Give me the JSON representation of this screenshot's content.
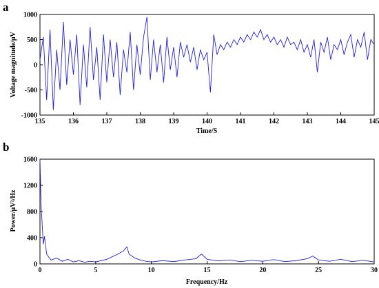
{
  "panels": {
    "a": {
      "label": "a"
    },
    "b": {
      "label": "b"
    }
  },
  "colors": {
    "series": "#1f1fdd",
    "axis": "#000000"
  },
  "chart_data": [
    {
      "type": "line",
      "xlabel": "Time/S",
      "ylabel": "Voltage magnitude/μV",
      "xlim": [
        135,
        145
      ],
      "ylim": [
        -1000,
        1000
      ],
      "xticks": [
        "135",
        "136",
        "137",
        "138",
        "139",
        "140",
        "141",
        "142",
        "143",
        "144",
        "145"
      ],
      "yticks": [
        "-1000",
        "-500",
        "0",
        "500",
        "1000"
      ],
      "grid": false,
      "series": [
        {
          "x": [
            135.0,
            135.1,
            135.2,
            135.3,
            135.4,
            135.5,
            135.6,
            135.7,
            135.8,
            135.9,
            136.0,
            136.1,
            136.2,
            136.3,
            136.4,
            136.5,
            136.6,
            136.7,
            136.8,
            136.9,
            137.0,
            137.1,
            137.2,
            137.3,
            137.4,
            137.5,
            137.6,
            137.7,
            137.8,
            137.9,
            138.0,
            138.1,
            138.2,
            138.3,
            138.4,
            138.5,
            138.6,
            138.7,
            138.8,
            138.9,
            139.0,
            139.1,
            139.2,
            139.3,
            139.4,
            139.5,
            139.6,
            139.7,
            139.8,
            139.9,
            140.0,
            140.1,
            140.2,
            140.3,
            140.4,
            140.5,
            140.6,
            140.7,
            140.8,
            140.9,
            141.0,
            141.1,
            141.2,
            141.3,
            141.4,
            141.5,
            141.6,
            141.7,
            141.8,
            141.9,
            142.0,
            142.1,
            142.2,
            142.3,
            142.4,
            142.5,
            142.6,
            142.7,
            142.8,
            142.9,
            143.0,
            143.1,
            143.2,
            143.3,
            143.4,
            143.5,
            143.6,
            143.7,
            143.8,
            143.9,
            144.0,
            144.1,
            144.2,
            144.3,
            144.4,
            144.5,
            144.6,
            144.7,
            144.8,
            144.9,
            145.0
          ],
          "y": [
            100,
            550,
            -700,
            700,
            -900,
            300,
            -500,
            850,
            -400,
            500,
            -200,
            600,
            -800,
            400,
            -450,
            750,
            -300,
            350,
            -700,
            600,
            -350,
            500,
            -250,
            450,
            -600,
            300,
            -150,
            650,
            -500,
            400,
            -200,
            550,
            950,
            -300,
            500,
            -150,
            400,
            -350,
            550,
            -100,
            350,
            -250,
            450,
            150,
            400,
            50,
            350,
            -100,
            300,
            100,
            250,
            -550,
            600,
            200,
            400,
            300,
            450,
            350,
            500,
            400,
            550,
            450,
            600,
            500,
            650,
            550,
            700,
            500,
            600,
            450,
            550,
            400,
            500,
            350,
            550,
            400,
            450,
            300,
            500,
            250,
            400,
            150,
            500,
            -150,
            450,
            250,
            550,
            100,
            400,
            300,
            500,
            200,
            450,
            600,
            150,
            500,
            350,
            650,
            100,
            500,
            400
          ]
        }
      ]
    },
    {
      "type": "line",
      "xlabel": "Frequency/Hz",
      "ylabel": "Power/μV²/Hz",
      "xlim": [
        0,
        30
      ],
      "ylim": [
        0,
        1600
      ],
      "xticks": [
        "0",
        "5",
        "10",
        "15",
        "20",
        "25",
        "30"
      ],
      "yticks": [
        "0",
        "400",
        "800",
        "1200",
        "1600"
      ],
      "grid": false,
      "series": [
        {
          "x": [
            0.0,
            0.1,
            0.2,
            0.3,
            0.4,
            0.6,
            0.8,
            1.0,
            1.5,
            2.0,
            2.5,
            3.0,
            3.5,
            4.0,
            4.5,
            5.0,
            5.5,
            6.0,
            6.5,
            7.0,
            7.5,
            7.8,
            8.0,
            8.5,
            9.0,
            9.5,
            10.0,
            11.0,
            12.0,
            13.0,
            14.0,
            14.5,
            15.0,
            16.0,
            17.0,
            18.0,
            19.0,
            20.0,
            21.0,
            22.0,
            23.0,
            24.0,
            24.5,
            25.0,
            26.0,
            27.0,
            28.0,
            29.0,
            30.0
          ],
          "y": [
            1600,
            900,
            600,
            300,
            420,
            150,
            100,
            60,
            90,
            40,
            70,
            30,
            50,
            25,
            40,
            30,
            50,
            70,
            110,
            150,
            200,
            260,
            150,
            90,
            60,
            40,
            30,
            50,
            35,
            60,
            80,
            150,
            70,
            45,
            60,
            35,
            55,
            40,
            65,
            35,
            50,
            80,
            120,
            60,
            40,
            70,
            35,
            55,
            30
          ]
        }
      ]
    }
  ]
}
